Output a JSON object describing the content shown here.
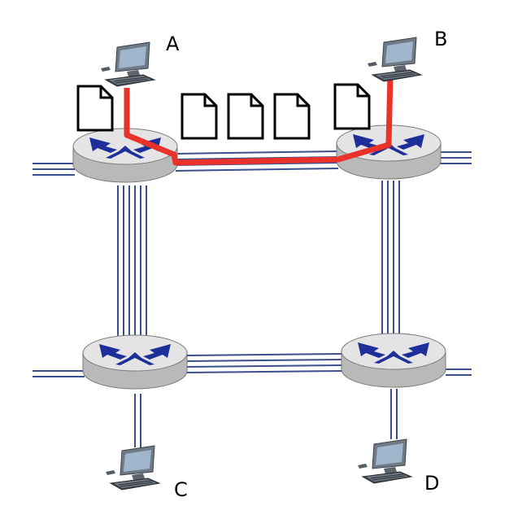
{
  "hosts": [
    {
      "id": "A",
      "label": "A"
    },
    {
      "id": "B",
      "label": "B"
    },
    {
      "id": "C",
      "label": "C"
    },
    {
      "id": "D",
      "label": "D"
    }
  ],
  "routers": [
    "router-top-left",
    "router-top-right",
    "router-bottom-left",
    "router-bottom-right"
  ],
  "highlighted_path": {
    "from": "A",
    "to": "B",
    "color": "#e8322a"
  },
  "packets_in_flight": 5,
  "colors": {
    "link": "#3b4f8c",
    "router_body": "#c8c8c8",
    "router_top": "#e6e6e6",
    "router_arrow": "#1f2f9a",
    "path": "#e8322a"
  }
}
